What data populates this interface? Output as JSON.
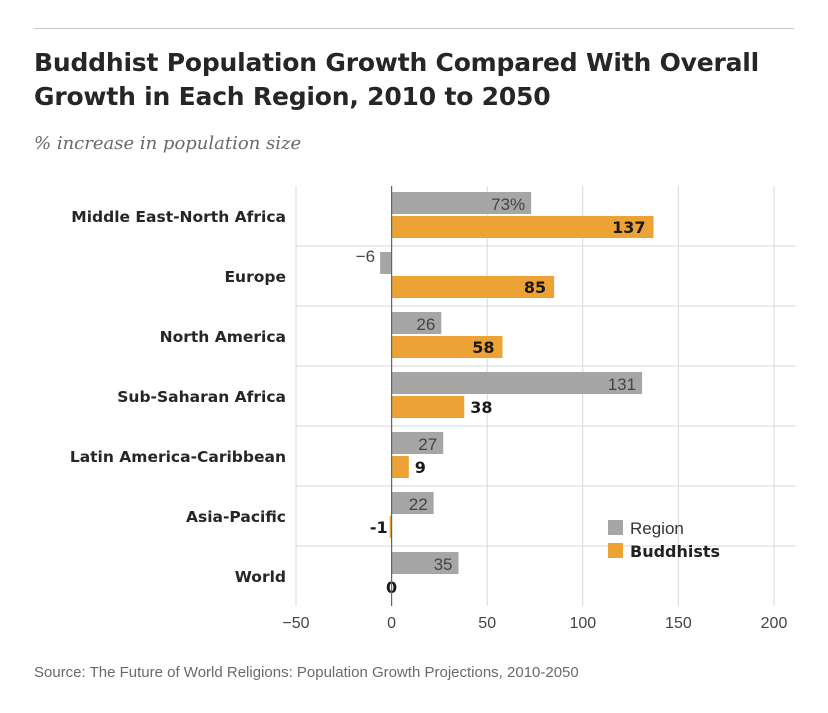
{
  "title": "Buddhist Population Growth Compared With Overall Growth in Each Region, 2010 to 2050",
  "subtitle": "% increase in population size",
  "source": "Source: The Future of World Religions: Population Growth Projections, 2010-2050",
  "chart_data": {
    "type": "bar",
    "orientation": "horizontal",
    "title": "Buddhist Population Growth Compared With Overall Growth in Each Region, 2010 to 2050",
    "subtitle": "% increase in population size",
    "xlabel": "",
    "ylabel": "",
    "xlim": [
      -50,
      200
    ],
    "xticks": [
      -50,
      0,
      50,
      100,
      150,
      200
    ],
    "xtick_labels": [
      "−50",
      "0",
      "50",
      "100",
      "150",
      "200"
    ],
    "grid": true,
    "legend_position": "bottom-right",
    "categories": [
      "Middle East-North Africa",
      "Europe",
      "North America",
      "Sub-Saharan Africa",
      "Latin America-Caribbean",
      "Asia-Pacific",
      "World"
    ],
    "series": [
      {
        "name": "Region",
        "color": "#a6a6a6",
        "values": [
          73,
          -6,
          26,
          131,
          27,
          22,
          35
        ],
        "labels": [
          "73%",
          "−6",
          "26",
          "131",
          "27",
          "22",
          "35"
        ]
      },
      {
        "name": "Buddhists",
        "color": "#eda236",
        "values": [
          137,
          85,
          58,
          38,
          9,
          -1,
          0
        ],
        "labels": [
          "137",
          "85",
          "58",
          "38",
          "9",
          "-1",
          "0"
        ]
      }
    ]
  }
}
